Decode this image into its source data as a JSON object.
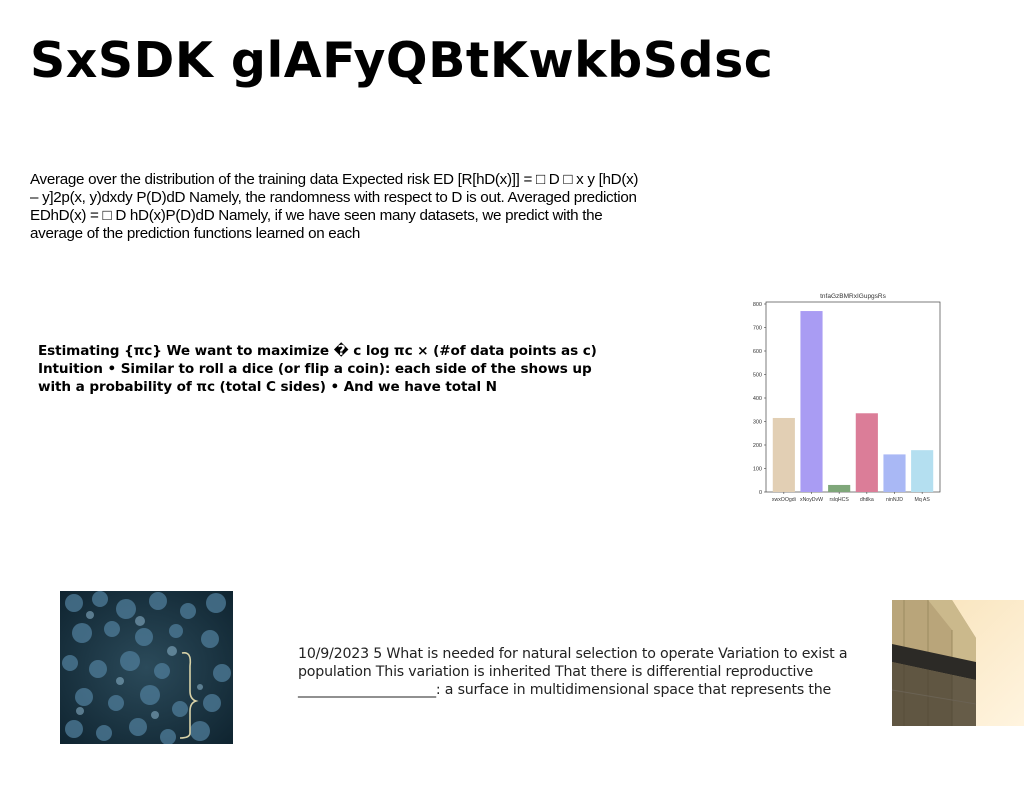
{
  "title": "SxSDK glAFyQBtKwkbSdsc",
  "paragraph1": "Average over the distribution of the training data Expected risk ED [R[hD(x)]] = □ D □ x y [hD(x) – y]2p(x, y)dxdy P(D)dD Namely, the randomness with respect to D is out. Averaged prediction EDhD(x) = □ D hD(x)P(D)dD Namely, if we have seen many datasets, we predict with the average of the prediction functions learned on each",
  "paragraph2": "Estimating {πc} We want to maximize � c log πc × (#of data points as c) Intuition • Similar to roll a dice (or flip a coin): each side of the shows up with a probability of πc (total C sides) • And we have total N",
  "paragraph3": "10/9/2023 5 What is needed for natural selection to operate Variation to exist a population This variation is inherited That there is differential reproductive ____________________: a surface in multidimensional space that represents the",
  "chart_data": {
    "type": "bar",
    "title": "tnfaGzBMRxIGupgsRs",
    "categories": [
      "xwxOOgdi",
      "xNoyDvW",
      "rslqHCS",
      "dhtlka",
      "ninNJD",
      "Mq AS"
    ],
    "values": [
      315,
      770,
      30,
      335,
      160,
      178
    ],
    "colors": [
      "#e2cfb4",
      "#a99cf3",
      "#7fa77a",
      "#db7d98",
      "#a9b8f5",
      "#b4dff0"
    ],
    "ylim": [
      0,
      800
    ],
    "yticks": [
      0,
      100,
      200,
      300,
      400,
      500,
      600,
      700,
      800
    ],
    "grid": false
  },
  "images": {
    "forest": "aerial-forest-photo",
    "building": "building-facade-photo"
  }
}
